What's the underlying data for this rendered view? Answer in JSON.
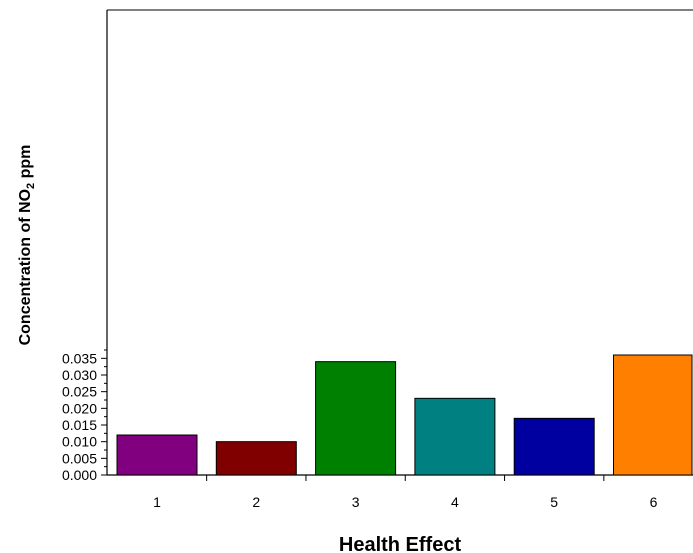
{
  "chart_data": {
    "type": "bar",
    "xlabel": "Health Effect",
    "ylabel": {
      "prefix": "Concentration of NO",
      "subscript": "2",
      "suffix": " ppm"
    },
    "categories": [
      "1",
      "2",
      "3",
      "4",
      "5",
      "6"
    ],
    "values": [
      0.012,
      0.01,
      0.034,
      0.023,
      0.017,
      0.036
    ],
    "ylim": [
      0,
      0.038
    ],
    "yticks": [
      "0.000",
      "0.005",
      "0.010",
      "0.015",
      "0.020",
      "0.025",
      "0.030",
      "0.035"
    ],
    "grid": false,
    "legend": "none",
    "colors": [
      "#800080",
      "#800000",
      "#008000",
      "#008080",
      "#0000A0",
      "#FF8000"
    ]
  }
}
